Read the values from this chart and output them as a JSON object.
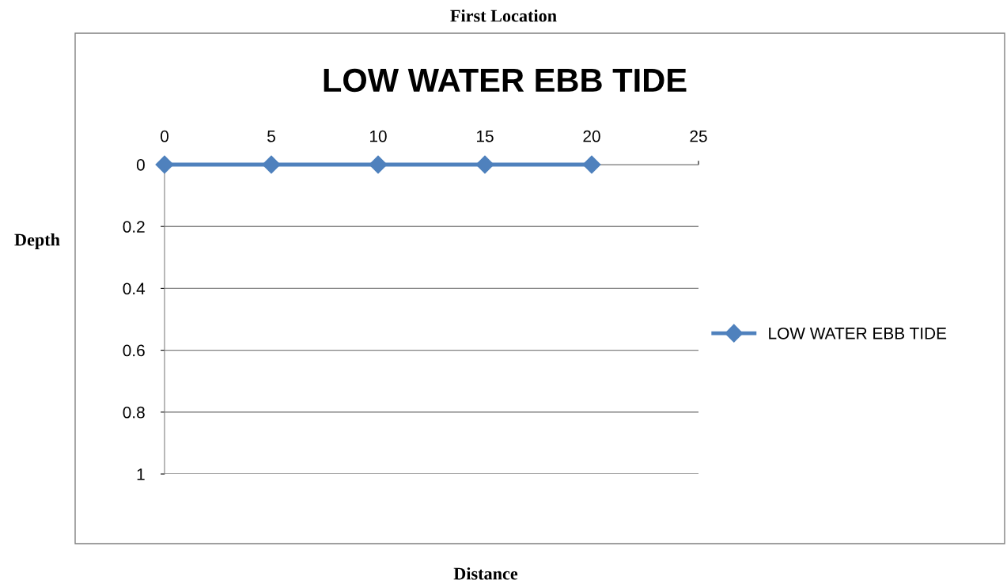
{
  "chart_data": {
    "type": "line",
    "title": "First Location",
    "subtitle": "LOW WATER EBB TIDE",
    "xlabel": "Distance",
    "ylabel": "Depth",
    "x": [
      0,
      5,
      10,
      15,
      20
    ],
    "series": [
      {
        "name": "LOW WATER EBB TIDE",
        "color": "#4f81bd",
        "values": [
          0,
          0,
          0,
          0,
          0
        ]
      }
    ],
    "xlim": [
      0,
      25
    ],
    "xticks": [
      0,
      5,
      10,
      15,
      20,
      25
    ],
    "ylim": [
      1,
      0
    ],
    "yticks": [
      0,
      0.2,
      0.4,
      0.6,
      0.8,
      1
    ],
    "grid": "y",
    "legend": "right",
    "marker": "diamond",
    "line_style": "solid"
  }
}
